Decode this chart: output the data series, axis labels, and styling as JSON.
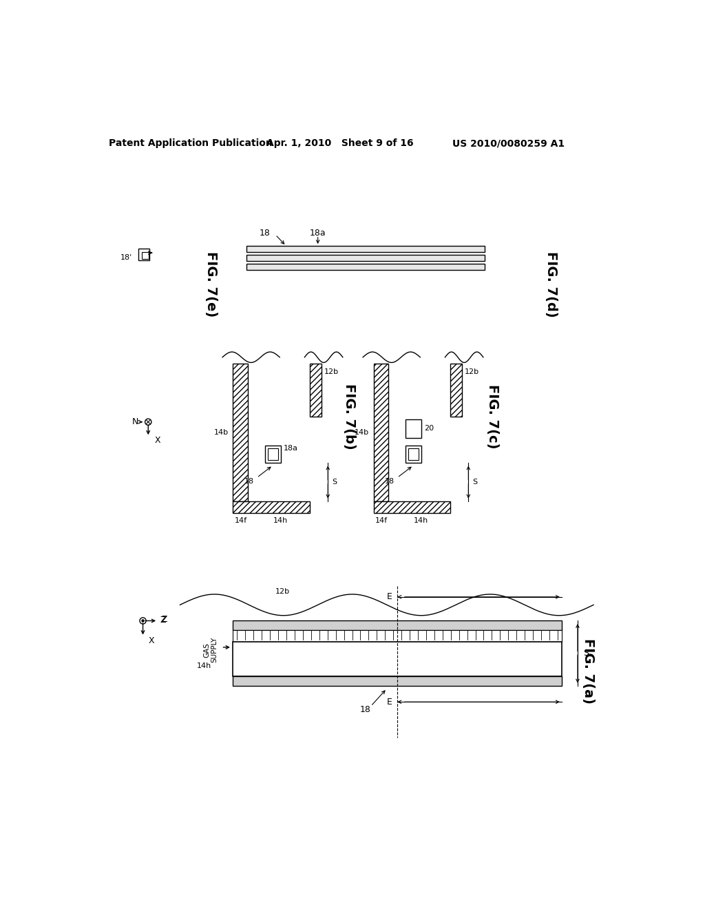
{
  "header_left": "Patent Application Publication",
  "header_mid": "Apr. 1, 2010   Sheet 9 of 16",
  "header_right": "US 2010/0080259 A1",
  "bg_color": "#ffffff"
}
